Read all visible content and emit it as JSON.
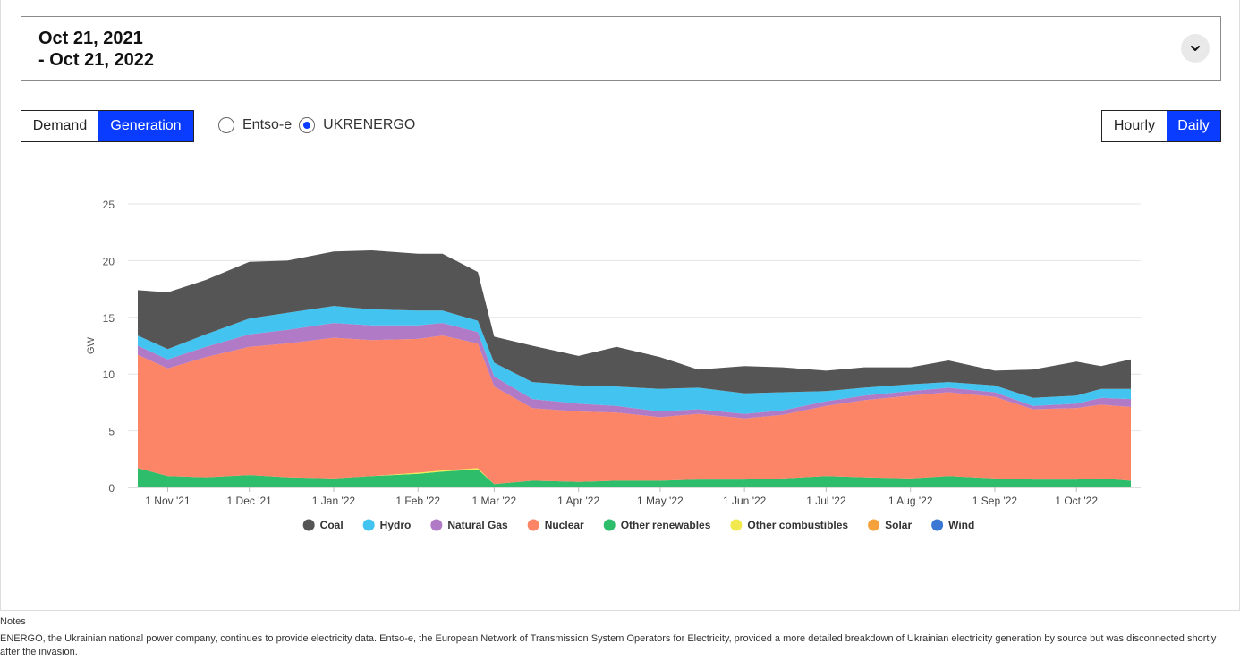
{
  "date_range": {
    "label": "Oct 21, 2021\n- Oct 21, 2022"
  },
  "mode_toggle": {
    "demand_label": "Demand",
    "generation_label": "Generation",
    "selected": "Generation"
  },
  "source_radio": {
    "options": [
      "Entso-e",
      "UKRENERGO"
    ],
    "selected": "UKRENERGO"
  },
  "resolution_toggle": {
    "hourly_label": "Hourly",
    "daily_label": "Daily",
    "selected": "Daily"
  },
  "notes": {
    "title": "Notes",
    "text": "ENERGO, the Ukrainian national power company, continues to provide electricity data. Entso-e, the European Network of Transmission System Operators for Electricity, provided a more detailed breakdown of Ukrainian electricity generation by source but was disconnected shortly after the invasion."
  },
  "chart_data": {
    "type": "area",
    "stacked": true,
    "ylabel": "GW",
    "ylim": [
      0,
      25
    ],
    "yticks": [
      0,
      5,
      10,
      15,
      20,
      25
    ],
    "xlim": [
      "2021-10-21",
      "2022-10-21"
    ],
    "xticks": [
      {
        "label": "1 Nov '21",
        "date": "2021-11-01"
      },
      {
        "label": "1 Dec '21",
        "date": "2021-12-01"
      },
      {
        "label": "1 Jan '22",
        "date": "2022-01-01"
      },
      {
        "label": "1 Feb '22",
        "date": "2022-02-01"
      },
      {
        "label": "1 Mar '22",
        "date": "2022-03-01"
      },
      {
        "label": "1 Apr '22",
        "date": "2022-04-01"
      },
      {
        "label": "1 May '22",
        "date": "2022-05-01"
      },
      {
        "label": "1 Jun '22",
        "date": "2022-06-01"
      },
      {
        "label": "1 Jul '22",
        "date": "2022-07-01"
      },
      {
        "label": "1 Aug '22",
        "date": "2022-08-01"
      },
      {
        "label": "1 Sep '22",
        "date": "2022-09-01"
      },
      {
        "label": "1 Oct '22",
        "date": "2022-10-01"
      }
    ],
    "legend_position": "bottom",
    "grid": true,
    "x": [
      "2021-10-21",
      "2021-11-01",
      "2021-11-15",
      "2021-12-01",
      "2021-12-15",
      "2022-01-01",
      "2022-01-15",
      "2022-02-01",
      "2022-02-10",
      "2022-02-23",
      "2022-03-01",
      "2022-03-15",
      "2022-04-01",
      "2022-04-15",
      "2022-05-01",
      "2022-05-15",
      "2022-06-01",
      "2022-06-15",
      "2022-07-01",
      "2022-07-15",
      "2022-08-01",
      "2022-08-15",
      "2022-09-01",
      "2022-09-15",
      "2022-10-01",
      "2022-10-10",
      "2022-10-21"
    ],
    "series": [
      {
        "name": "Other renewables",
        "color": "#2ebd6b",
        "values": [
          1.7,
          1.0,
          0.9,
          1.1,
          0.9,
          0.8,
          1.0,
          1.2,
          1.4,
          1.6,
          0.3,
          0.6,
          0.5,
          0.6,
          0.6,
          0.7,
          0.7,
          0.8,
          1.0,
          0.9,
          0.8,
          1.0,
          0.8,
          0.7,
          0.7,
          0.8,
          0.6
        ]
      },
      {
        "name": "Other combustibles",
        "color": "#f2e94e",
        "values": [
          0,
          0,
          0,
          0,
          0,
          0,
          0,
          0.1,
          0.1,
          0.1,
          0,
          0,
          0,
          0,
          0,
          0,
          0,
          0,
          0,
          0,
          0,
          0,
          0,
          0,
          0,
          0,
          0
        ]
      },
      {
        "name": "Solar",
        "color": "#f5a23c",
        "values": [
          0,
          0,
          0,
          0,
          0,
          0,
          0,
          0,
          0,
          0,
          0,
          0,
          0,
          0,
          0,
          0,
          0,
          0,
          0,
          0,
          0,
          0,
          0,
          0,
          0,
          0,
          0
        ]
      },
      {
        "name": "Wind",
        "color": "#3a78d4",
        "values": [
          0,
          0,
          0,
          0,
          0,
          0,
          0,
          0,
          0,
          0,
          0,
          0,
          0,
          0,
          0,
          0,
          0,
          0,
          0,
          0,
          0,
          0,
          0,
          0,
          0,
          0,
          0
        ]
      },
      {
        "name": "Nuclear",
        "color": "#fb8566",
        "values": [
          10.0,
          9.5,
          10.6,
          11.3,
          11.8,
          12.4,
          12.0,
          11.8,
          11.9,
          11.0,
          8.6,
          6.4,
          6.2,
          6.0,
          5.6,
          5.8,
          5.4,
          5.6,
          6.2,
          6.8,
          7.3,
          7.4,
          7.2,
          6.2,
          6.3,
          6.5,
          6.5
        ]
      },
      {
        "name": "Natural Gas",
        "color": "#b07ac6",
        "values": [
          0.8,
          0.8,
          0.9,
          1.1,
          1.2,
          1.3,
          1.3,
          1.2,
          1.1,
          1.0,
          0.9,
          0.8,
          0.7,
          0.6,
          0.5,
          0.4,
          0.4,
          0.4,
          0.4,
          0.4,
          0.4,
          0.4,
          0.4,
          0.3,
          0.4,
          0.6,
          0.7
        ]
      },
      {
        "name": "Hydro",
        "color": "#43c4f0",
        "values": [
          0.9,
          0.9,
          1.1,
          1.4,
          1.5,
          1.5,
          1.4,
          1.3,
          1.1,
          1.0,
          1.2,
          1.5,
          1.6,
          1.7,
          2.0,
          1.9,
          1.8,
          1.6,
          0.9,
          0.7,
          0.6,
          0.5,
          0.6,
          0.7,
          0.7,
          0.8,
          0.9
        ]
      },
      {
        "name": "Coal",
        "color": "#555555",
        "values": [
          4.0,
          5.0,
          4.8,
          5.0,
          4.6,
          4.8,
          5.2,
          5.0,
          5.0,
          4.3,
          2.3,
          3.2,
          2.6,
          3.5,
          2.8,
          1.6,
          2.4,
          2.2,
          1.8,
          1.8,
          1.5,
          1.9,
          1.3,
          2.5,
          3.0,
          2.0,
          2.6
        ]
      }
    ],
    "legend_order": [
      "Coal",
      "Hydro",
      "Natural Gas",
      "Nuclear",
      "Other renewables",
      "Other combustibles",
      "Solar",
      "Wind"
    ]
  }
}
